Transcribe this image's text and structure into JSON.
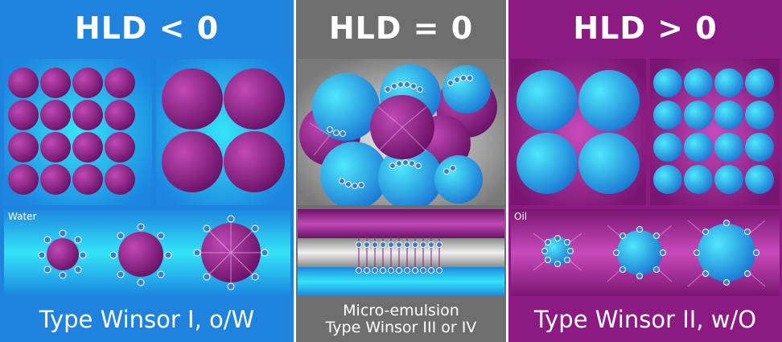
{
  "left": {
    "header": "HLD < 0",
    "layer_label": "Water",
    "footer": "Type Winsor I, o/W",
    "color": "#1f82dc"
  },
  "middle": {
    "header": "HLD = 0",
    "footer_line1": "Micro-emulsion",
    "footer_line2": "Type Winsor III or IV",
    "color": "#6e6e6e"
  },
  "right": {
    "header": "HLD > 0",
    "layer_label": "Oil",
    "footer": "Type Winsor II, w/O",
    "color": "#8b1b82"
  },
  "colors": {
    "water": "#19a7ee",
    "oil": "#9a2a8f",
    "surfactant": "#3a7fc8"
  }
}
